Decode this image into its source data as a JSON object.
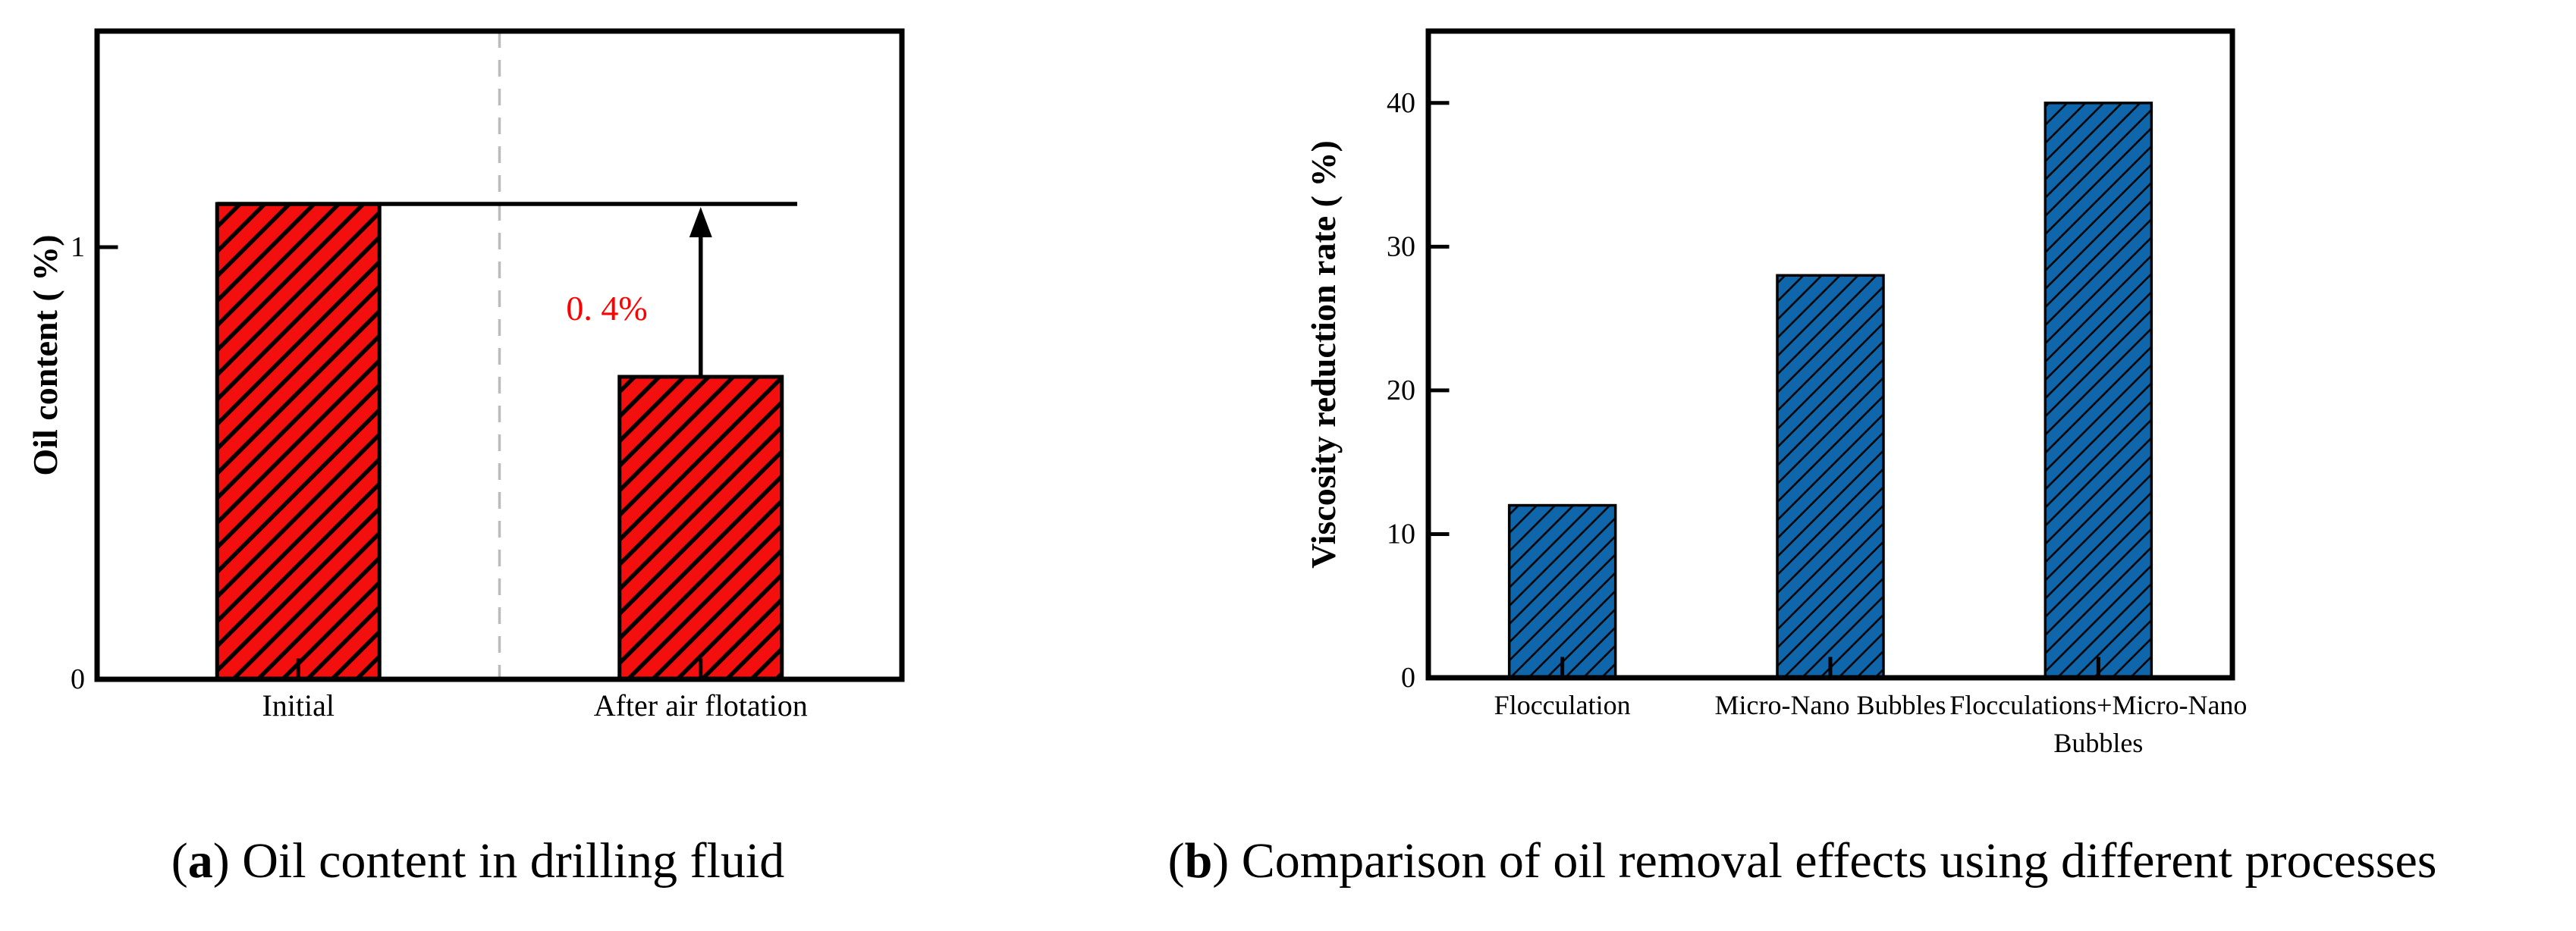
{
  "figure": {
    "background": "#ffffff",
    "frame_color": "#000000",
    "tick_color": "#000000"
  },
  "chart_data": [
    {
      "id": "a",
      "type": "bar",
      "categories": [
        "Initial",
        "After air flotation"
      ],
      "values": [
        1.1,
        0.7
      ],
      "ylabel": "Oil content ( %)",
      "yticks": [
        0,
        1
      ],
      "ylim": [
        0,
        1.5
      ],
      "grid": false,
      "legend": "none",
      "bar_color": "#f40f0f",
      "bar_edge_color": "#000000",
      "hatch_style": "thick-diagonal-slash",
      "annotations": {
        "delta_label": "0. 4%",
        "delta_label_color": "#ff0000",
        "reference_line_value": 1.1,
        "arrow_from_value": 0.7,
        "arrow_to_value": 1.1,
        "arrow_color": "#000000",
        "dashed_divider_fraction": 0.5,
        "dashed_divider_color": "#bbbbbb"
      }
    },
    {
      "id": "b",
      "type": "bar",
      "categories": [
        "Flocculation",
        "Micro-Nano Bubbles",
        "Flocculations+Micro-Nano\nBubbles"
      ],
      "values": [
        12,
        28,
        40
      ],
      "ylabel": "Viscosity reduction rate ( %)",
      "yticks": [
        0,
        10,
        20,
        30,
        40
      ],
      "ylim": [
        0,
        45
      ],
      "grid": false,
      "legend": "none",
      "bar_color": "#0f66aa",
      "bar_edge_color": "#000000",
      "hatch_style": "thin-diagonal-slash"
    }
  ],
  "captions": {
    "a": {
      "open": "(",
      "letter": "a",
      "close": ")",
      "text": " Oil content in drilling fluid"
    },
    "b": {
      "open": "(",
      "letter": "b",
      "close": ")",
      "text": " Comparison of oil removal effects using different processes"
    }
  }
}
